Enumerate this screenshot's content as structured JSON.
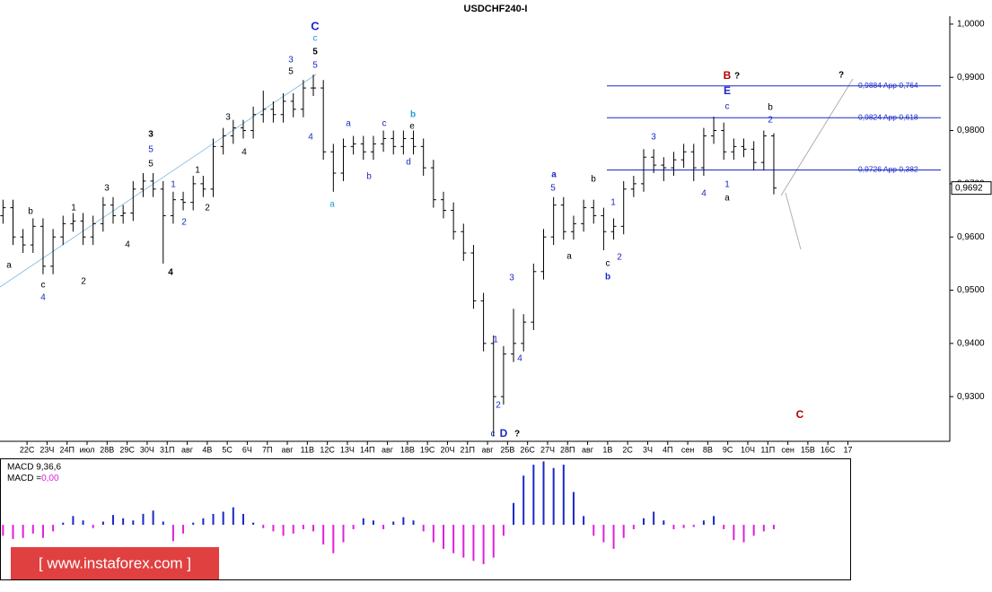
{
  "chart_data": {
    "type": "ohlc",
    "title": "USDCHF240-I",
    "categories": [
      "22С",
      "23Ч",
      "24П",
      "июл",
      "28В",
      "29С",
      "30Ч",
      "31П",
      "авг",
      "4В",
      "5С",
      "6Ч",
      "7П",
      "авг",
      "11В",
      "12С",
      "13Ч",
      "14П",
      "авг",
      "18В",
      "19С",
      "20Ч",
      "21П",
      "авг",
      "25В",
      "26С",
      "27Ч",
      "28П",
      "авг",
      "1В",
      "2С",
      "3Ч",
      "4П",
      "сен",
      "8В",
      "9С",
      "10Ч",
      "11П",
      "сен",
      "15В",
      "16С",
      "17"
    ],
    "xlim": [
      -1.35,
      46.09
    ],
    "ylim": [
      0.9216,
      1.0015
    ],
    "yticks": [
      {
        "value": 0.93,
        "label": "0,9300"
      },
      {
        "value": 0.94,
        "label": "0,9400"
      },
      {
        "value": 0.95,
        "label": "0,9500"
      },
      {
        "value": 0.96,
        "label": "0,9600"
      },
      {
        "value": 0.97,
        "label": "0,9700"
      },
      {
        "value": 0.98,
        "label": "0,9800"
      },
      {
        "value": 0.99,
        "label": "0,9900"
      },
      {
        "value": 1.0,
        "label": "1,0000"
      }
    ],
    "color": "#000000",
    "x": [
      -1.2,
      -0.7,
      -0.2,
      0.3,
      0.8,
      1.3,
      1.8,
      2.3,
      2.8,
      3.3,
      3.8,
      4.3,
      4.8,
      5.3,
      5.8,
      6.3,
      6.8,
      7.3,
      7.8,
      8.3,
      8.8,
      9.3,
      9.8,
      10.3,
      10.8,
      11.3,
      11.8,
      12.3,
      12.8,
      13.3,
      13.8,
      14.3,
      14.8,
      15.3,
      15.8,
      16.3,
      16.8,
      17.3,
      17.8,
      18.3,
      18.8,
      19.3,
      19.8,
      20.3,
      20.8,
      21.3,
      21.8,
      22.3,
      22.8,
      23.3,
      23.8,
      24.3,
      24.8,
      25.3,
      25.8,
      26.3,
      26.8,
      27.3,
      27.8,
      28.3,
      28.8,
      29.3,
      29.8,
      30.3,
      30.8,
      31.3,
      31.8,
      32.3,
      32.8,
      33.3,
      33.8,
      34.3,
      34.8,
      35.3,
      35.8,
      36.3,
      36.8,
      37.3
    ],
    "open": [
      0.964,
      0.9655,
      0.96,
      0.9585,
      0.962,
      0.9545,
      0.96,
      0.9625,
      0.963,
      0.96,
      0.9625,
      0.966,
      0.964,
      0.9645,
      0.969,
      0.9705,
      0.969,
      0.964,
      0.967,
      0.9665,
      0.97,
      0.969,
      0.977,
      0.979,
      0.9805,
      0.98,
      0.983,
      0.984,
      0.983,
      0.9855,
      0.984,
      0.988,
      0.988,
      0.976,
      0.972,
      0.977,
      0.9775,
      0.976,
      0.9775,
      0.9785,
      0.977,
      0.9785,
      0.977,
      0.973,
      0.967,
      0.965,
      0.961,
      0.957,
      0.948,
      0.94,
      0.93,
      0.938,
      0.94,
      0.944,
      0.9535,
      0.96,
      0.966,
      0.961,
      0.9625,
      0.9655,
      0.964,
      0.961,
      0.962,
      0.969,
      0.97,
      0.975,
      0.9735,
      0.973,
      0.9745,
      0.976,
      0.973,
      0.979,
      0.98,
      0.976,
      0.977,
      0.9765,
      0.974,
      0.979
    ],
    "high": [
      0.967,
      0.967,
      0.9615,
      0.9635,
      0.9635,
      0.9615,
      0.964,
      0.9645,
      0.9645,
      0.964,
      0.9675,
      0.9675,
      0.966,
      0.9705,
      0.972,
      0.972,
      0.9705,
      0.9685,
      0.9685,
      0.9715,
      0.9715,
      0.9785,
      0.9805,
      0.982,
      0.982,
      0.9845,
      0.9875,
      0.9855,
      0.987,
      0.987,
      0.9895,
      0.9905,
      0.9895,
      0.9775,
      0.9785,
      0.979,
      0.979,
      0.979,
      0.98,
      0.98,
      0.98,
      0.98,
      0.9785,
      0.9745,
      0.9685,
      0.9665,
      0.9625,
      0.9585,
      0.9495,
      0.9415,
      0.9395,
      0.9465,
      0.9455,
      0.955,
      0.9615,
      0.9675,
      0.9675,
      0.964,
      0.967,
      0.967,
      0.9655,
      0.9635,
      0.9705,
      0.9715,
      0.9765,
      0.9765,
      0.975,
      0.976,
      0.9775,
      0.9775,
      0.9805,
      0.9826,
      0.9815,
      0.9785,
      0.9785,
      0.978,
      0.98,
      0.9795
    ],
    "low": [
      0.9625,
      0.9585,
      0.957,
      0.957,
      0.953,
      0.953,
      0.9585,
      0.961,
      0.9585,
      0.9585,
      0.961,
      0.9625,
      0.9625,
      0.963,
      0.9675,
      0.9675,
      0.955,
      0.9625,
      0.965,
      0.965,
      0.9675,
      0.9675,
      0.9755,
      0.9775,
      0.9785,
      0.9785,
      0.9815,
      0.9815,
      0.9815,
      0.9825,
      0.9825,
      0.9865,
      0.9745,
      0.9685,
      0.9705,
      0.9755,
      0.9745,
      0.9745,
      0.976,
      0.9755,
      0.9755,
      0.9755,
      0.9715,
      0.9655,
      0.9635,
      0.9595,
      0.9555,
      0.9465,
      0.9385,
      0.9225,
      0.9285,
      0.9365,
      0.9385,
      0.9425,
      0.952,
      0.9585,
      0.9595,
      0.9595,
      0.961,
      0.9625,
      0.9575,
      0.9595,
      0.9605,
      0.9675,
      0.9685,
      0.972,
      0.9705,
      0.9715,
      0.973,
      0.9705,
      0.9715,
      0.9775,
      0.9745,
      0.9745,
      0.975,
      0.9725,
      0.9725,
      0.968
    ],
    "close": [
      0.9655,
      0.96,
      0.9585,
      0.962,
      0.9545,
      0.96,
      0.9625,
      0.963,
      0.96,
      0.9625,
      0.966,
      0.964,
      0.9645,
      0.969,
      0.9705,
      0.969,
      0.964,
      0.967,
      0.9665,
      0.97,
      0.969,
      0.977,
      0.979,
      0.9805,
      0.98,
      0.983,
      0.984,
      0.983,
      0.9855,
      0.984,
      0.988,
      0.988,
      0.976,
      0.972,
      0.977,
      0.9775,
      0.976,
      0.9775,
      0.9785,
      0.977,
      0.9785,
      0.977,
      0.973,
      0.967,
      0.965,
      0.961,
      0.957,
      0.948,
      0.94,
      0.93,
      0.938,
      0.94,
      0.944,
      0.9535,
      0.96,
      0.966,
      0.961,
      0.9625,
      0.9655,
      0.964,
      0.961,
      0.962,
      0.969,
      0.97,
      0.975,
      0.9735,
      0.973,
      0.9745,
      0.976,
      0.973,
      0.979,
      0.98,
      0.976,
      0.977,
      0.9765,
      0.974,
      0.979,
      0.9692
    ],
    "last_price": {
      "value": 0.9692,
      "label": "0,9692"
    },
    "levels": [
      {
        "value": 0.9884,
        "label": "0,9884 App 0,764"
      },
      {
        "value": 0.9824,
        "label": "0,9824 App 0,618"
      },
      {
        "value": 0.9726,
        "label": "0,9726 App 0,382"
      }
    ],
    "level_color": "#1a28c8",
    "annotations": [
      {
        "text": "a",
        "color": "#000000"
      },
      {
        "text": "b",
        "color": "#000000"
      },
      {
        "text": "c",
        "color": "#000000"
      },
      {
        "text": "4",
        "color": "#1a28c8"
      },
      {
        "text": "1",
        "color": "#000000"
      },
      {
        "text": "2",
        "color": "#000000"
      },
      {
        "text": "3",
        "color": "#000000"
      },
      {
        "text": "4",
        "color": "#000000"
      },
      {
        "text": "3",
        "color": "#000000"
      },
      {
        "text": "5",
        "color": "#1a28c8"
      },
      {
        "text": "5",
        "color": "#000000"
      },
      {
        "text": "1",
        "color": "#1a28c8"
      },
      {
        "text": "2",
        "color": "#1a28c8"
      },
      {
        "text": "4",
        "color": "#000000"
      },
      {
        "text": "1",
        "color": "#000000"
      },
      {
        "text": "2",
        "color": "#000000"
      },
      {
        "text": "3",
        "color": "#000000"
      },
      {
        "text": "4",
        "color": "#000000"
      },
      {
        "text": "3",
        "color": "#1a28c8"
      },
      {
        "text": "5",
        "color": "#000000"
      },
      {
        "text": "4",
        "color": "#1a28c8"
      },
      {
        "text": "C",
        "color": "#1a28c8"
      },
      {
        "text": "c",
        "color": "#1e9ad6"
      },
      {
        "text": "5",
        "color": "#000000"
      },
      {
        "text": "5",
        "color": "#1a28c8"
      },
      {
        "text": "a",
        "color": "#1e9ad6"
      },
      {
        "text": "a",
        "color": "#1a28c8"
      },
      {
        "text": "b",
        "color": "#1a28c8"
      },
      {
        "text": "c",
        "color": "#1a28c8"
      },
      {
        "text": "d",
        "color": "#1a28c8"
      },
      {
        "text": "b",
        "color": "#1e9ad6"
      },
      {
        "text": "e",
        "color": "#000000"
      },
      {
        "text": "1",
        "color": "#1a28c8"
      },
      {
        "text": "2",
        "color": "#1a28c8"
      },
      {
        "text": "3",
        "color": "#1a28c8"
      },
      {
        "text": "4",
        "color": "#1a28c8"
      },
      {
        "text": "c",
        "color": "#1a28c8"
      },
      {
        "text": "D",
        "color": "#1a28c8"
      },
      {
        "text": "?",
        "color": "#000000"
      },
      {
        "text": "a",
        "color": "#1a28c8"
      },
      {
        "text": "5",
        "color": "#1a28c8"
      },
      {
        "text": "a",
        "color": "#000000"
      },
      {
        "text": "b",
        "color": "#000000"
      },
      {
        "text": "1",
        "color": "#1a28c8"
      },
      {
        "text": "c",
        "color": "#000000"
      },
      {
        "text": "b",
        "color": "#1a28c8"
      },
      {
        "text": "2",
        "color": "#1a28c8"
      },
      {
        "text": "3",
        "color": "#1a28c8"
      },
      {
        "text": "4",
        "color": "#1a28c8"
      },
      {
        "text": "1",
        "color": "#1a28c8"
      },
      {
        "text": "a",
        "color": "#000000"
      },
      {
        "text": "B",
        "color": "#b00000"
      },
      {
        "text": "?",
        "color": "#000000"
      },
      {
        "text": "E",
        "color": "#1a28c8"
      },
      {
        "text": "c",
        "color": "#1a28c8"
      },
      {
        "text": "b",
        "color": "#000000"
      },
      {
        "text": "2",
        "color": "#1a28c8"
      },
      {
        "text": "?",
        "color": "#000000"
      },
      {
        "text": "C",
        "color": "#b00000"
      }
    ],
    "macd": {
      "type": "bar",
      "label": "MACD 9,36,6",
      "current_label": "MACD =",
      "current_value": {
        "value": 0,
        "label": "0,00"
      },
      "ylim": [
        -0.005,
        0.006
      ],
      "positive_color": "#1a28c8",
      "negative_color": "#e020d8",
      "values": [
        -0.001,
        -0.0013,
        -0.0012,
        -0.0008,
        -0.0012,
        -0.0006,
        0.0002,
        0.0008,
        0.0004,
        -0.0003,
        0.0003,
        0.0009,
        0.0006,
        0.0004,
        0.001,
        0.0013,
        0.0003,
        -0.0015,
        -0.0008,
        0.0002,
        0.0006,
        0.001,
        0.0012,
        0.0016,
        0.001,
        0.0002,
        -0.0003,
        -0.0006,
        -0.001,
        -0.0008,
        -0.0004,
        -0.0006,
        -0.0018,
        -0.0026,
        -0.0016,
        -0.0004,
        0.0006,
        0.0004,
        -0.0004,
        0.0003,
        0.0007,
        0.0004,
        -0.0006,
        -0.0016,
        -0.0022,
        -0.0026,
        -0.003,
        -0.0033,
        -0.0036,
        -0.003,
        -0.001,
        0.002,
        0.0045,
        0.0055,
        0.0058,
        0.0052,
        0.0055,
        0.003,
        0.0008,
        -0.001,
        -0.0016,
        -0.0022,
        -0.0012,
        -0.0004,
        0.0006,
        0.0012,
        0.0004,
        -0.0004,
        -0.0003,
        -0.0002,
        0.0004,
        0.0008,
        -0.0004,
        -0.0014,
        -0.0016,
        -0.001,
        -0.0006,
        -0.0004
      ]
    },
    "watermark": "[ www.instaforex.com ]"
  }
}
